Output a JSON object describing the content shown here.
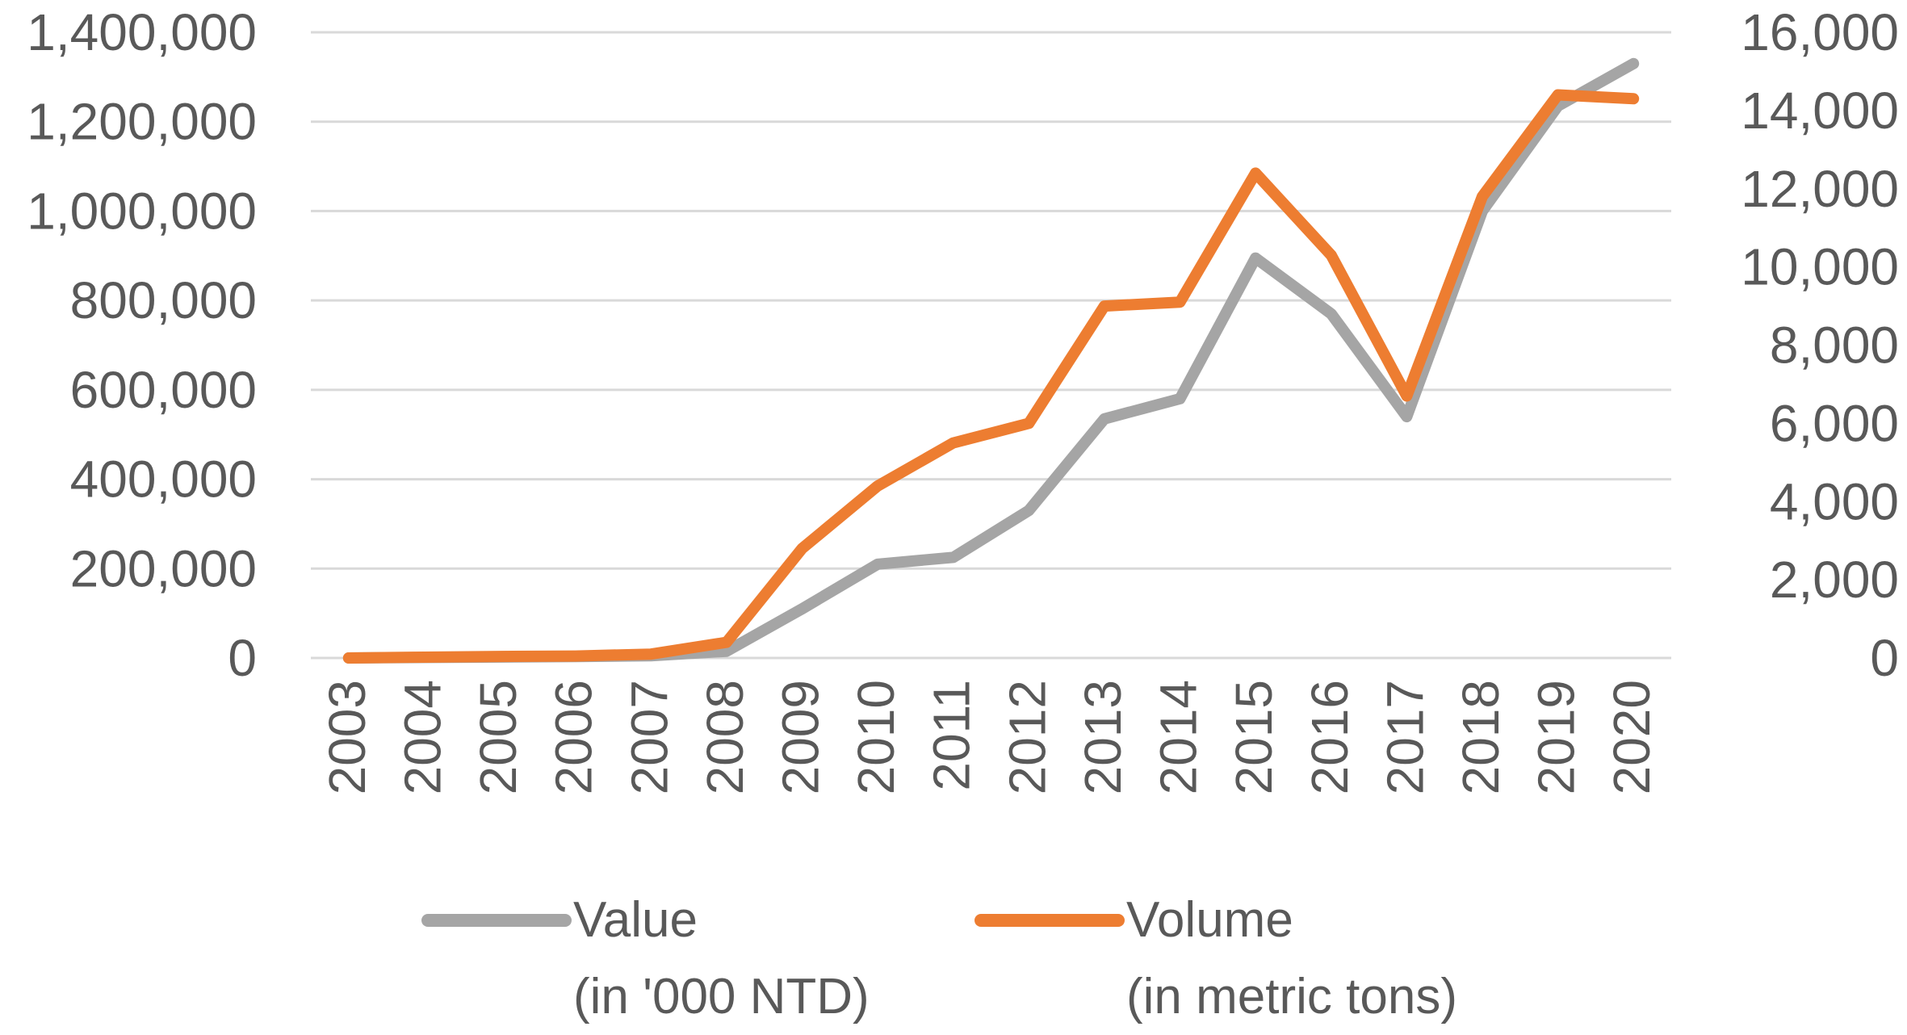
{
  "chart_data": {
    "type": "line",
    "title": "",
    "categories": [
      "2003",
      "2004",
      "2005",
      "2006",
      "2007",
      "2008",
      "2009",
      "2010",
      "2011",
      "2012",
      "2013",
      "2014",
      "2015",
      "2016",
      "2017",
      "2018",
      "2019",
      "2020"
    ],
    "series": [
      {
        "name": "Value",
        "unit_label": "(in '000 NTD)",
        "axis": "left",
        "color": "#a5a5a5",
        "values": [
          0,
          1000,
          2000,
          3000,
          5000,
          15000,
          110000,
          210000,
          225000,
          330000,
          535000,
          580000,
          895000,
          770000,
          540000,
          1000000,
          1235000,
          1330000
        ]
      },
      {
        "name": "Volume",
        "unit_label": "(in metric tons)",
        "axis": "right",
        "color": "#ed7d31",
        "values": [
          0,
          20,
          40,
          50,
          100,
          400,
          2800,
          4400,
          5500,
          6000,
          9000,
          9100,
          12400,
          10300,
          6700,
          11800,
          14400,
          14300
        ]
      }
    ],
    "left_axis": {
      "ylim": [
        0,
        1400000
      ],
      "ticks": [
        0,
        200000,
        400000,
        600000,
        800000,
        1000000,
        1200000,
        1400000
      ],
      "tick_labels": [
        "0",
        "200,000",
        "400,000",
        "600,000",
        "800,000",
        "1,000,000",
        "1,200,000",
        "1,400,000"
      ]
    },
    "right_axis": {
      "ylim": [
        0,
        16000
      ],
      "ticks": [
        0,
        2000,
        4000,
        6000,
        8000,
        10000,
        12000,
        14000,
        16000
      ],
      "tick_labels": [
        "0",
        "2,000",
        "4,000",
        "6,000",
        "8,000",
        "10,000",
        "12,000",
        "14,000",
        "16,000"
      ]
    },
    "grid": true,
    "legend_position": "bottom"
  }
}
